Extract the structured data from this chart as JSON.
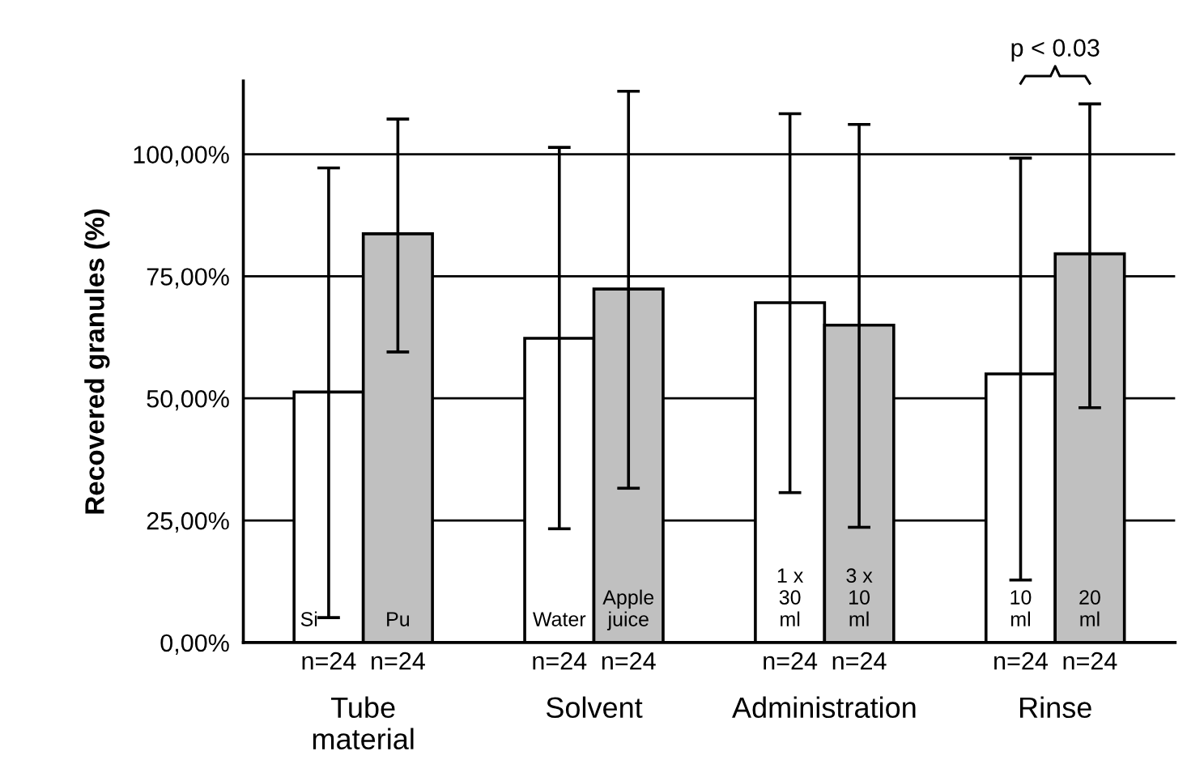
{
  "chart_data": {
    "type": "bar",
    "ylabel": "Recovered granules (%)",
    "categories": [
      "Tube\nmaterial",
      "Solvent",
      "Administration",
      "Rinse"
    ],
    "series": [
      {
        "color": "#ffffff",
        "values": [
          51.3,
          62.3,
          69.6,
          55.0
        ],
        "errors": [
          [
            5.1,
            97.2
          ],
          [
            23.3,
            101.4
          ],
          [
            30.7,
            108.3
          ],
          [
            12.8,
            99.2
          ]
        ]
      },
      {
        "color": "#c0c0c0",
        "values": [
          83.7,
          72.4,
          65.0,
          79.6
        ],
        "errors": [
          [
            59.5,
            107.2
          ],
          [
            31.6,
            112.9
          ],
          [
            23.6,
            106.1
          ],
          [
            48.1,
            110.3
          ]
        ]
      }
    ],
    "ylim": [
      0,
      115
    ],
    "yticks": [
      {
        "value": 0,
        "label": "0,00%"
      },
      {
        "value": 25,
        "label": "25,00%"
      },
      {
        "value": 50,
        "label": "50,00%"
      },
      {
        "value": 75,
        "label": "75,00%"
      },
      {
        "value": 100,
        "label": "100,00%"
      }
    ],
    "grid": "y",
    "annotations": [
      "Si",
      "Pu",
      "Water",
      "Apple\njuice",
      "1 x\n30\nml",
      "3 x\n10\nml",
      "10\nml",
      "20\nml",
      "n=24",
      "n=24",
      "n=24",
      "n=24",
      "n=24",
      "n=24",
      "n=24",
      "n=24",
      "p < 0.03"
    ]
  }
}
